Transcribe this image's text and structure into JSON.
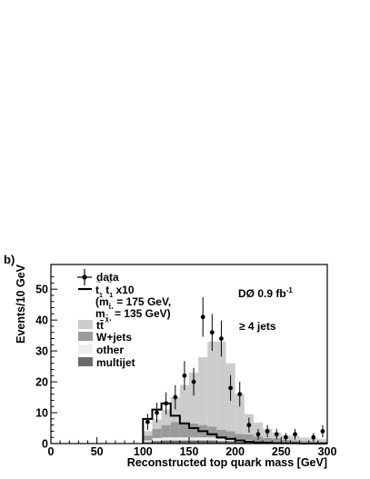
{
  "chart_data": {
    "type": "bar",
    "panel_label": "b)",
    "xlabel": "Reconstructed top quark mass [GeV]",
    "ylabel": "Events/10 GeV",
    "xlim": [
      0,
      300
    ],
    "ylim": [
      0,
      58
    ],
    "x_ticks": [
      "0",
      "50",
      "100",
      "150",
      "200",
      "250",
      "300"
    ],
    "y_ticks": [
      "0",
      "10",
      "20",
      "30",
      "40",
      "50"
    ],
    "experiment_label": "DØ 0.9 fb",
    "experiment_label_sup": "-1",
    "jets_label": "≥ 4 jets",
    "legend": {
      "data": "data",
      "signal_line1_main": "t",
      "signal_line1_tail": " x10",
      "signal_line2": "(m",
      "signal_line2_tail": " = 175 GeV,",
      "signal_line3": "m",
      "signal_line3_tail": " = 135 GeV)",
      "ttbar": "tt̄",
      "wjets": "W+jets",
      "other": "other",
      "multijet": "multijet"
    },
    "bin_edges": [
      100,
      110,
      120,
      130,
      140,
      150,
      160,
      170,
      180,
      190,
      200,
      210,
      220,
      230,
      240,
      250,
      260,
      270,
      280,
      290,
      300
    ],
    "series": [
      {
        "name": "multijet",
        "color": "#6b6b6b",
        "values": [
          0.5,
          0.8,
          1.0,
          1.0,
          1.0,
          1.0,
          1.0,
          1.0,
          0.8,
          0.8,
          0.6,
          0.5,
          0.4,
          0.3,
          0.3,
          0.2,
          0.2,
          0.2,
          0.1,
          0.1
        ]
      },
      {
        "name": "other",
        "color": "#eeeeee",
        "values": [
          0.5,
          1.0,
          1.0,
          1.0,
          1.0,
          1.0,
          1.0,
          1.0,
          0.7,
          0.7,
          0.5,
          0.5,
          0.4,
          0.3,
          0.3,
          0.2,
          0.2,
          0.2,
          0.1,
          0.1
        ]
      },
      {
        "name": "W+jets",
        "color": "#9a9a9a",
        "values": [
          1.5,
          3.0,
          4.0,
          5.0,
          5.0,
          4.5,
          4.0,
          3.5,
          3.0,
          2.5,
          2.0,
          2.0,
          1.5,
          1.2,
          1.0,
          0.8,
          0.6,
          0.5,
          0.5,
          0.4
        ]
      },
      {
        "name": "tt̄",
        "color": "#cccccc",
        "values": [
          1.5,
          3.0,
          5.0,
          8.0,
          12.0,
          16.5,
          22.0,
          27.5,
          28.5,
          22.0,
          13.0,
          6.5,
          4.5,
          3.0,
          2.0,
          1.5,
          1.5,
          1.0,
          1.0,
          0.8
        ]
      }
    ],
    "signal": {
      "name": "t̃₁t̃₁ x10",
      "values": [
        8.0,
        11.0,
        13.0,
        9.0,
        6.5,
        5.0,
        4.0,
        3.0,
        2.0,
        1.5,
        1.0,
        0.6,
        0.4,
        0.3,
        0.2,
        0.1,
        0.1,
        0.0,
        0.0,
        0.0
      ]
    },
    "data_points": [
      {
        "x": 105,
        "y": 7,
        "err": 2.6
      },
      {
        "x": 115,
        "y": 10,
        "err": 3.2
      },
      {
        "x": 125,
        "y": 13,
        "err": 3.6
      },
      {
        "x": 135,
        "y": 15,
        "err": 3.9
      },
      {
        "x": 145,
        "y": 22,
        "err": 4.7
      },
      {
        "x": 155,
        "y": 20,
        "err": 4.5
      },
      {
        "x": 165,
        "y": 41,
        "err": 6.4
      },
      {
        "x": 175,
        "y": 36,
        "err": 6.0
      },
      {
        "x": 185,
        "y": 34,
        "err": 5.8
      },
      {
        "x": 195,
        "y": 18,
        "err": 4.2
      },
      {
        "x": 205,
        "y": 16,
        "err": 4.0
      },
      {
        "x": 215,
        "y": 6,
        "err": 2.4
      },
      {
        "x": 225,
        "y": 3,
        "err": 1.7
      },
      {
        "x": 235,
        "y": 4,
        "err": 2.0
      },
      {
        "x": 245,
        "y": 3,
        "err": 1.7
      },
      {
        "x": 255,
        "y": 2,
        "err": 1.4
      },
      {
        "x": 265,
        "y": 3,
        "err": 1.7
      },
      {
        "x": 285,
        "y": 2,
        "err": 1.4
      },
      {
        "x": 295,
        "y": 4,
        "err": 2.0
      }
    ]
  }
}
